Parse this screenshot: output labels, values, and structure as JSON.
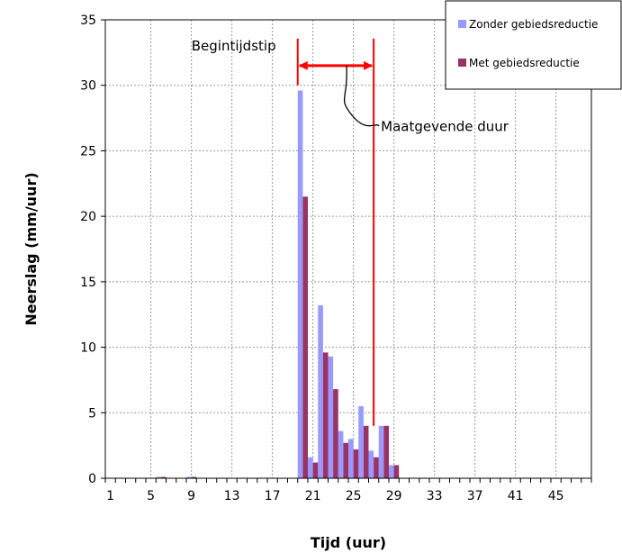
{
  "chart_data": {
    "type": "bar",
    "xlabel": "Tijd (uur)",
    "ylabel": "Neerslag (mm/uur)",
    "ylim": [
      0,
      35
    ],
    "yticks": [
      0,
      5,
      10,
      15,
      20,
      25,
      30,
      35
    ],
    "x_range": [
      1,
      48
    ],
    "x_tick_labels": [
      "1",
      "5",
      "9",
      "13",
      "17",
      "21",
      "25",
      "29",
      "33",
      "37",
      "41",
      "45"
    ],
    "grid": true,
    "legend_position": "top-right",
    "categories": [
      6,
      9,
      20,
      21,
      22,
      23,
      24,
      25,
      26,
      27,
      28,
      29
    ],
    "series": [
      {
        "name": "Zonder gebiedsreductie",
        "color": "#9999ff",
        "values": [
          0.1,
          0.1,
          29.6,
          1.6,
          13.2,
          9.3,
          3.6,
          3.0,
          5.5,
          2.1,
          4.0,
          1.0
        ]
      },
      {
        "name": "Met gebiedsreductie",
        "color": "#993366",
        "values": [
          0.1,
          0.1,
          21.5,
          1.2,
          9.6,
          6.8,
          2.7,
          2.2,
          4.0,
          1.6,
          4.0,
          1.0
        ]
      }
    ],
    "annotations": {
      "start_label": "Begintijdstip",
      "duration_label": "Maatgevende duur",
      "start_time": 20,
      "end_time": 27.5,
      "arrow_level": 31.5,
      "line_color": "#ff0000"
    }
  }
}
